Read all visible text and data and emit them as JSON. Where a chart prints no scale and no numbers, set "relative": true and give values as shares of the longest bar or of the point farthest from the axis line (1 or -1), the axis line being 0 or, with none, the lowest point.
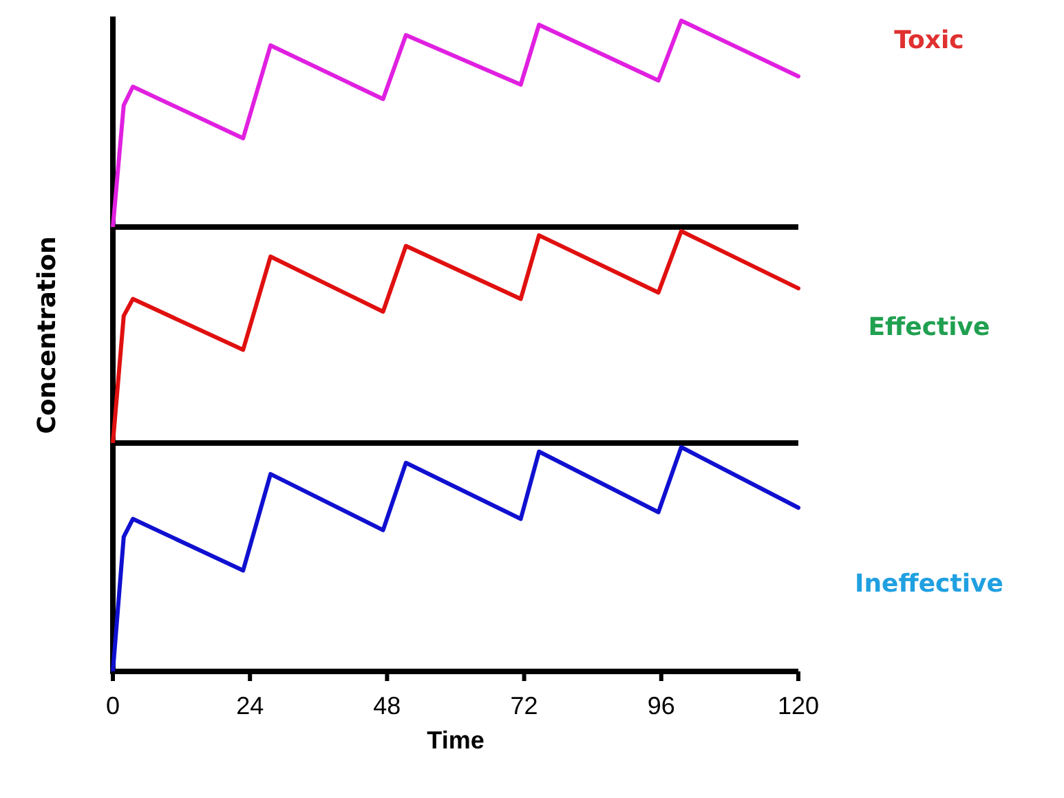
{
  "chart_data": [
    {
      "type": "line",
      "relative": true,
      "x": [
        0,
        1.9,
        3.5,
        22.8,
        27.6,
        47.3,
        51.3,
        71.4,
        74.6,
        95.5,
        99.5,
        120
      ],
      "xlim": [
        0,
        120
      ],
      "tick_labels": false,
      "series": [
        {
          "name": "Toxic",
          "color": "#e020e0",
          "values": [
            0,
            0.59,
            0.68,
            0.43,
            0.88,
            0.62,
            0.93,
            0.69,
            0.98,
            0.71,
            1,
            0.73
          ]
        }
      ]
    },
    {
      "type": "line",
      "ylabel": "Concentration",
      "relative": true,
      "x": [
        0,
        1.9,
        3.5,
        22.8,
        27.6,
        47.3,
        51.3,
        71.4,
        74.6,
        95.5,
        99.5,
        120
      ],
      "xlim": [
        0,
        120
      ],
      "tick_labels": false,
      "series": [
        {
          "name": "Effective",
          "color": "#e01010",
          "values": [
            0,
            0.6,
            0.68,
            0.44,
            0.88,
            0.62,
            0.93,
            0.68,
            0.98,
            0.71,
            1,
            0.73
          ]
        }
      ]
    },
    {
      "type": "line",
      "xlabel": "Time",
      "relative": true,
      "x": [
        0,
        1.9,
        3.5,
        22.8,
        27.6,
        47.3,
        51.3,
        71.4,
        74.6,
        95.5,
        99.5,
        120
      ],
      "xlim": [
        0,
        120
      ],
      "xticks": [
        0,
        24,
        48,
        72,
        96,
        120
      ],
      "tick_labels": "x",
      "series": [
        {
          "name": "Ineffective",
          "color": "#1010d0",
          "values": [
            0,
            0.6,
            0.68,
            0.45,
            0.88,
            0.63,
            0.93,
            0.68,
            0.98,
            0.71,
            1,
            0.73
          ]
        }
      ]
    }
  ]
}
